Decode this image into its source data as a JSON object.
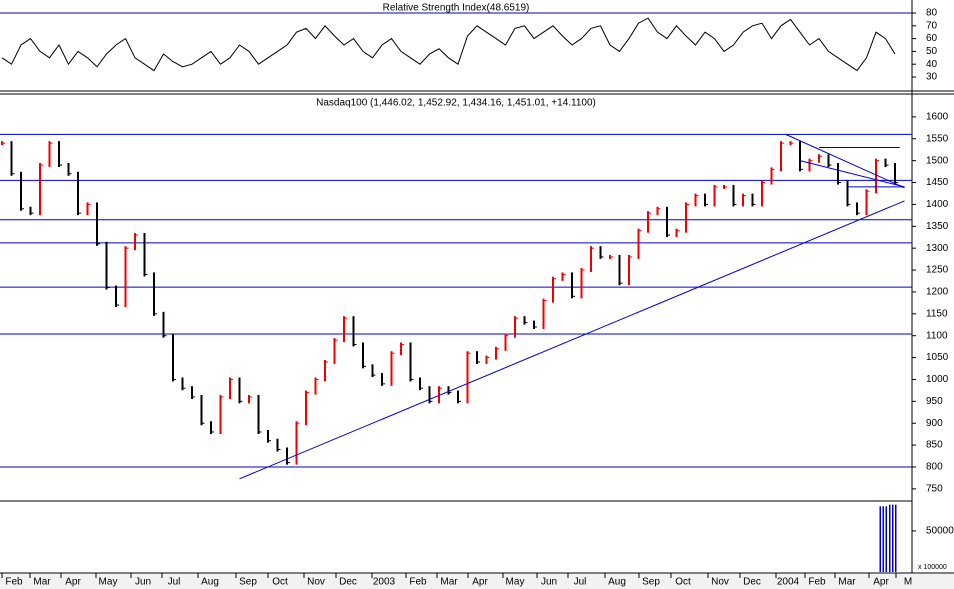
{
  "chart_data": [
    {
      "type": "line",
      "title": "Relative Strength Index(48.6519)",
      "color": "#000000",
      "values": [
        45,
        40,
        55,
        60,
        50,
        45,
        55,
        40,
        50,
        45,
        38,
        48,
        55,
        60,
        45,
        40,
        35,
        48,
        42,
        38,
        40,
        45,
        50,
        40,
        45,
        55,
        50,
        40,
        45,
        50,
        55,
        65,
        68,
        60,
        70,
        62,
        55,
        60,
        50,
        45,
        55,
        60,
        50,
        45,
        40,
        48,
        52,
        45,
        40,
        62,
        70,
        65,
        60,
        55,
        68,
        70,
        60,
        65,
        70,
        62,
        55,
        60,
        68,
        70,
        55,
        50,
        60,
        72,
        76,
        65,
        60,
        70,
        62,
        55,
        65,
        60,
        50,
        55,
        65,
        70,
        72,
        60,
        70,
        75,
        65,
        55,
        60,
        50,
        45,
        40,
        35,
        45,
        65,
        60,
        48
      ],
      "ylim": [
        20,
        85
      ],
      "yticks": [
        30,
        40,
        50,
        60,
        70,
        80
      ],
      "levels": [
        80
      ],
      "level_color": "#0000cc"
    },
    {
      "type": "bar",
      "title": "Nasdaq100 (1,446.02, 1,452.92, 1,434.16, 1,451.01, +14.1100)",
      "up_color": "#ee0000",
      "down_color": "#000000",
      "values": [
        1540,
        1470,
        1390,
        1380,
        1490,
        1540,
        1490,
        1470,
        1380,
        1400,
        1310,
        1210,
        1170,
        1300,
        1330,
        1240,
        1150,
        1100,
        1000,
        980,
        960,
        900,
        880,
        960,
        1000,
        950,
        960,
        880,
        860,
        840,
        810,
        900,
        970,
        1000,
        1040,
        1090,
        1140,
        1080,
        1030,
        1010,
        990,
        1060,
        1080,
        1000,
        980,
        950,
        980,
        970,
        950,
        1060,
        1040,
        1050,
        1070,
        1100,
        1140,
        1130,
        1120,
        1180,
        1230,
        1240,
        1190,
        1250,
        1300,
        1280,
        1280,
        1220,
        1280,
        1340,
        1380,
        1390,
        1330,
        1340,
        1400,
        1420,
        1400,
        1440,
        1440,
        1400,
        1420,
        1400,
        1450,
        1480,
        1540,
        1540,
        1480,
        1500,
        1510,
        1490,
        1450,
        1400,
        1380,
        1430,
        1500,
        1490,
        1450
      ],
      "ylim": [
        720,
        1650
      ],
      "yticks": [
        750,
        800,
        850,
        900,
        950,
        1000,
        1050,
        1100,
        1150,
        1200,
        1250,
        1300,
        1350,
        1400,
        1450,
        1500,
        1550,
        1600
      ],
      "levels": [
        1560,
        1455,
        1365,
        1312,
        1211,
        1104,
        800
      ],
      "level_color": "#0000cc",
      "trendlines": [
        {
          "start": [
            25,
            773
          ],
          "end": [
            95,
            1408
          ]
        },
        {
          "start": [
            82.5,
            1560
          ],
          "end": [
            95,
            1438
          ]
        },
        {
          "start": [
            86,
            1530
          ],
          "end": [
            94.5,
            1530
          ]
        },
        {
          "start": [
            84,
            1500
          ],
          "end": [
            95,
            1440
          ]
        },
        {
          "start": [
            89,
            1440
          ],
          "end": [
            95,
            1440
          ]
        }
      ],
      "x_labels": [
        "Feb",
        "Mar",
        "Apr",
        "May",
        "Jun",
        "Jul",
        "Aug",
        "Sep",
        "Oct",
        "Nov",
        "Dec",
        "2003",
        "Feb",
        "Mar",
        "Apr",
        "May",
        "Jun",
        "Jul",
        "Aug",
        "Sep",
        "Oct",
        "Nov",
        "Dec",
        "2004",
        "Feb",
        "Mar",
        "Apr",
        "M"
      ]
    },
    {
      "type": "volume",
      "color": "#0000cc",
      "values": [
        null,
        null,
        null,
        null,
        null,
        null,
        null,
        null,
        null,
        null,
        null,
        null,
        null,
        null,
        null,
        null,
        null,
        null,
        null,
        null,
        null,
        null,
        null,
        null,
        null,
        null,
        null,
        null,
        null,
        null,
        null,
        null,
        null,
        null,
        null,
        null,
        null,
        null,
        null,
        null,
        null,
        null,
        null,
        null,
        null,
        null,
        null,
        null,
        null,
        null,
        null,
        null,
        null,
        null,
        null,
        null,
        null,
        null,
        null,
        null,
        null,
        null,
        null,
        null,
        null,
        null,
        null,
        null,
        null,
        null,
        null,
        null,
        null,
        null,
        null,
        null,
        null,
        null,
        null,
        null,
        null,
        null,
        null,
        null,
        null,
        null,
        null,
        null,
        null,
        null,
        null,
        null,
        null,
        80000,
        82000
      ],
      "ylim": [
        0,
        84000
      ],
      "yticks": [
        50000
      ],
      "unit_label": "x 100000"
    }
  ]
}
